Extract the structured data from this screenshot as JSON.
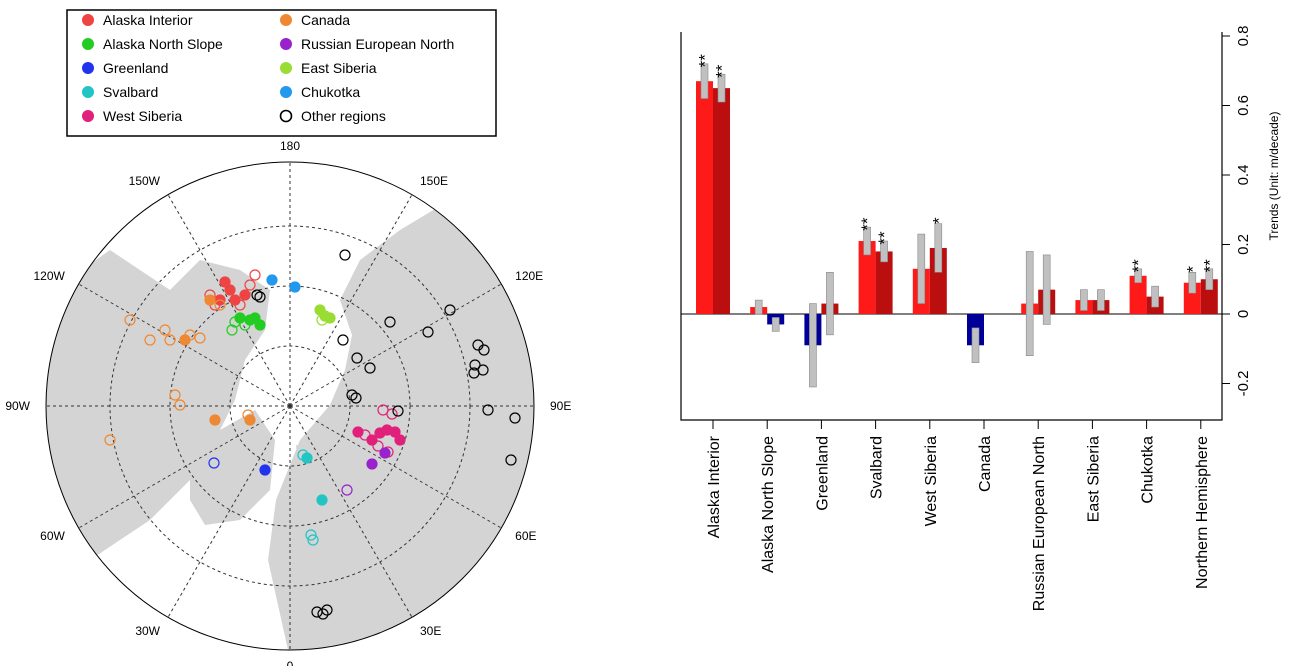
{
  "legend": {
    "entries": [
      {
        "label": "Alaska Interior",
        "color": "#ee4444"
      },
      {
        "label": "Alaska North Slope",
        "color": "#22cc22"
      },
      {
        "label": "Greenland",
        "color": "#2233ee"
      },
      {
        "label": "Svalbard",
        "color": "#22c4c4"
      },
      {
        "label": "West Siberia",
        "color": "#e0207a"
      },
      {
        "label": "Canada",
        "color": "#ee8833"
      },
      {
        "label": "Russian European North",
        "color": "#9922cc"
      },
      {
        "label": "East Siberia",
        "color": "#99dd33"
      },
      {
        "label": "Chukotka",
        "color": "#2299ee"
      },
      {
        "label": "Other regions",
        "color": "#000000"
      }
    ]
  },
  "map": {
    "longitude_labels": [
      "180",
      "150E",
      "120E",
      "90E",
      "60E",
      "30E",
      "0",
      "30W",
      "60W",
      "90W",
      "120W",
      "150W"
    ],
    "land_color": "#d4d4d4"
  },
  "chart_data": {
    "type": "bar",
    "categories": [
      "Alaska Interior",
      "Alaska North Slope",
      "Greenland",
      "Svalbard",
      "West Siberia",
      "Canada",
      "Russian European North",
      "East Siberia",
      "Chukotka",
      "Northern Hemisphere"
    ],
    "series": [
      {
        "values": [
          0.67,
          0.02,
          -0.09,
          0.21,
          0.13,
          -0.09,
          0.03,
          0.04,
          0.11,
          0.09
        ],
        "uncertainty": [
          0.05,
          0.02,
          0.12,
          0.04,
          0.1,
          0.05,
          0.15,
          0.03,
          0.02,
          0.03
        ],
        "significance": [
          "**",
          "",
          "",
          "**",
          "",
          "",
          "",
          "",
          "**",
          "*"
        ]
      },
      {
        "values": [
          0.65,
          -0.03,
          0.03,
          0.18,
          0.19,
          null,
          0.07,
          0.04,
          0.05,
          0.1
        ],
        "uncertainty": [
          0.04,
          0.02,
          0.09,
          0.03,
          0.07,
          null,
          0.1,
          0.03,
          0.03,
          0.03
        ],
        "significance": [
          "**",
          "",
          "",
          "**",
          "*",
          "",
          "",
          "",
          "",
          "**"
        ]
      }
    ],
    "ylabel": "Trends  (Unit: m/decade)",
    "yticks": [
      "0.8",
      "0.6",
      "0.4",
      "0.2",
      "0",
      "-0.2"
    ],
    "ytick_values": [
      0.8,
      0.6,
      0.4,
      0.2,
      0,
      -0.2
    ],
    "ylim": [
      -0.3,
      0.8
    ],
    "colors": {
      "positive": [
        "#ff1a1a",
        "#bb0f0f"
      ],
      "negative": [
        "#000099",
        "#000099"
      ],
      "uncertainty": "#c0c0c0"
    }
  }
}
